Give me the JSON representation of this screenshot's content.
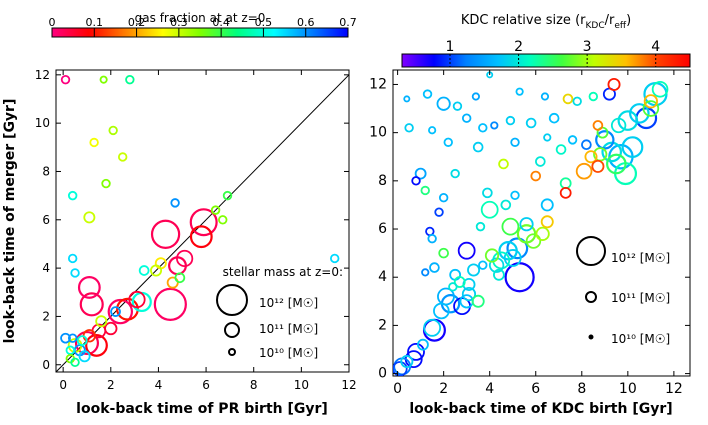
{
  "chart_data": [
    {
      "type": "scatter",
      "panel": "left",
      "xlabel": "look-back time of PR birth [Gyr]",
      "ylabel": "look-back time of merger [Gyr]",
      "xlim": [
        -0.3,
        12
      ],
      "ylim": [
        -0.3,
        12.2
      ],
      "xticks": [
        "0",
        "2",
        "4",
        "6",
        "8",
        "10",
        "12"
      ],
      "yticks": [
        "0",
        "2",
        "4",
        "6",
        "8",
        "10",
        "12"
      ],
      "one_to_one_line": true,
      "colorbar": {
        "label": "gas fraction at at z=0",
        "min": 0,
        "max": 0.7,
        "ticks": [
          "0",
          "0.1",
          "0.2",
          "0.3",
          "0.4",
          "0.5",
          "0.6",
          "0.7"
        ],
        "colormap": [
          "#ff0080",
          "#ff0000",
          "#ff8000",
          "#ffff00",
          "#80ff00",
          "#00ff80",
          "#00ffff",
          "#0080ff",
          "#0000ff"
        ]
      },
      "size_legend": {
        "title": "stellar mass at z=0:",
        "entries": [
          {
            "label": "10¹² [M☉]",
            "mass_log": 12
          },
          {
            "label": "10¹¹ [M☉]",
            "mass_log": 11
          },
          {
            "label": "10¹⁰ [M☉]",
            "mass_log": 10
          }
        ]
      },
      "points": [
        {
          "x": 0.1,
          "y": 11.8,
          "c": 0.0,
          "m": 10.2
        },
        {
          "x": 1.7,
          "y": 11.8,
          "c": 0.35,
          "m": 10.1
        },
        {
          "x": 2.8,
          "y": 11.8,
          "c": 0.45,
          "m": 10.2
        },
        {
          "x": 2.1,
          "y": 9.7,
          "c": 0.32,
          "m": 10.2
        },
        {
          "x": 1.3,
          "y": 9.2,
          "c": 0.27,
          "m": 10.2
        },
        {
          "x": 2.5,
          "y": 8.6,
          "c": 0.3,
          "m": 10.2
        },
        {
          "x": 1.8,
          "y": 7.5,
          "c": 0.35,
          "m": 10.2
        },
        {
          "x": 0.4,
          "y": 7.0,
          "c": 0.5,
          "m": 10.2
        },
        {
          "x": 1.1,
          "y": 6.1,
          "c": 0.3,
          "m": 10.4
        },
        {
          "x": 4.7,
          "y": 6.7,
          "c": 0.6,
          "m": 10.2
        },
        {
          "x": 6.9,
          "y": 7.0,
          "c": 0.4,
          "m": 10.2
        },
        {
          "x": 6.4,
          "y": 6.4,
          "c": 0.35,
          "m": 10.2
        },
        {
          "x": 6.7,
          "y": 6.0,
          "c": 0.35,
          "m": 10.2
        },
        {
          "x": 5.9,
          "y": 5.9,
          "c": 0.03,
          "m": 11.6
        },
        {
          "x": 4.3,
          "y": 5.4,
          "c": 0.03,
          "m": 11.7
        },
        {
          "x": 5.8,
          "y": 5.3,
          "c": 0.08,
          "m": 11.2
        },
        {
          "x": 0.4,
          "y": 4.4,
          "c": 0.55,
          "m": 10.2
        },
        {
          "x": 0.5,
          "y": 3.8,
          "c": 0.55,
          "m": 10.2
        },
        {
          "x": 11.4,
          "y": 4.4,
          "c": 0.55,
          "m": 10.2
        },
        {
          "x": 5.1,
          "y": 4.4,
          "c": 0.03,
          "m": 10.8
        },
        {
          "x": 4.8,
          "y": 4.1,
          "c": 0.03,
          "m": 10.9
        },
        {
          "x": 4.1,
          "y": 4.2,
          "c": 0.25,
          "m": 10.4
        },
        {
          "x": 3.9,
          "y": 3.9,
          "c": 0.3,
          "m": 10.4
        },
        {
          "x": 3.4,
          "y": 3.9,
          "c": 0.5,
          "m": 10.3
        },
        {
          "x": 4.6,
          "y": 3.4,
          "c": 0.2,
          "m": 10.4
        },
        {
          "x": 4.9,
          "y": 3.6,
          "c": 0.4,
          "m": 10.3
        },
        {
          "x": 1.1,
          "y": 3.2,
          "c": 0.02,
          "m": 11.2
        },
        {
          "x": 3.3,
          "y": 2.6,
          "c": 0.5,
          "m": 11.0
        },
        {
          "x": 1.2,
          "y": 2.5,
          "c": 0.03,
          "m": 11.3
        },
        {
          "x": 4.5,
          "y": 2.5,
          "c": 0.02,
          "m": 12.0
        },
        {
          "x": 3.1,
          "y": 2.7,
          "c": 0.05,
          "m": 10.8
        },
        {
          "x": 2.7,
          "y": 2.3,
          "c": 0.1,
          "m": 11.2
        },
        {
          "x": 2.4,
          "y": 2.2,
          "c": 0.02,
          "m": 11.4
        },
        {
          "x": 2.2,
          "y": 2.2,
          "c": 0.6,
          "m": 10.3
        },
        {
          "x": 1.6,
          "y": 1.8,
          "c": 0.3,
          "m": 10.4
        },
        {
          "x": 1.5,
          "y": 1.4,
          "c": 0.05,
          "m": 10.6
        },
        {
          "x": 1.1,
          "y": 1.2,
          "c": 0.12,
          "m": 10.5
        },
        {
          "x": 2.0,
          "y": 1.5,
          "c": 0.05,
          "m": 10.5
        },
        {
          "x": 0.1,
          "y": 1.1,
          "c": 0.6,
          "m": 10.3
        },
        {
          "x": 0.4,
          "y": 1.1,
          "c": 0.6,
          "m": 10.2
        },
        {
          "x": 0.8,
          "y": 1.0,
          "c": 0.5,
          "m": 10.3
        },
        {
          "x": 1.0,
          "y": 0.9,
          "c": 0.03,
          "m": 11.3
        },
        {
          "x": 1.4,
          "y": 0.8,
          "c": 0.08,
          "m": 11.2
        },
        {
          "x": 0.5,
          "y": 0.8,
          "c": 0.3,
          "m": 10.6
        },
        {
          "x": 0.7,
          "y": 0.6,
          "c": 0.6,
          "m": 10.4
        },
        {
          "x": 0.3,
          "y": 0.6,
          "c": 0.5,
          "m": 10.2
        },
        {
          "x": 0.9,
          "y": 0.35,
          "c": 0.55,
          "m": 10.4
        },
        {
          "x": 0.3,
          "y": 0.25,
          "c": 0.35,
          "m": 10.2
        },
        {
          "x": 0.5,
          "y": 0.1,
          "c": 0.45,
          "m": 10.2
        }
      ]
    },
    {
      "type": "scatter",
      "panel": "right",
      "xlabel": "look-back time of KDC birth [Gyr]",
      "ylabel": "",
      "xlim": [
        -0.2,
        12.7
      ],
      "ylim": [
        -0.1,
        12.6
      ],
      "xticks": [
        "0",
        "2",
        "4",
        "6",
        "8",
        "10",
        "12"
      ],
      "yticks": [
        "0",
        "2",
        "4",
        "6",
        "8",
        "10",
        "12"
      ],
      "colorbar": {
        "label": "KDC relative size (r",
        "label_sub1": "KDC",
        "label_mid": "/r",
        "label_sub2": "eff",
        "label_end": ")",
        "min": 0.3,
        "max": 4.5,
        "ticks": [
          "1",
          "2",
          "3",
          "4"
        ],
        "tick_values": [
          1,
          2,
          3,
          4
        ],
        "colormap": [
          "#8000ff",
          "#0000ff",
          "#0080ff",
          "#00c0ff",
          "#00ffc0",
          "#40ff40",
          "#c0ff00",
          "#ffc000",
          "#ff4000",
          "#ff0000"
        ]
      },
      "size_legend": {
        "entries": [
          {
            "label": "10¹² [M☉]",
            "mass_log": 12
          },
          {
            "label": "10¹¹ [M☉]",
            "mass_log": 11
          },
          {
            "label": "10¹⁰ [M☉]",
            "mass_log": 10
          }
        ]
      },
      "points": [
        {
          "x": 4.0,
          "y": 12.4,
          "c": 1.8,
          "m": 10.1
        },
        {
          "x": 0.4,
          "y": 11.4,
          "c": 1.6,
          "m": 10.1
        },
        {
          "x": 1.3,
          "y": 11.6,
          "c": 1.7,
          "m": 10.3
        },
        {
          "x": 2.0,
          "y": 11.2,
          "c": 1.6,
          "m": 10.7
        },
        {
          "x": 2.6,
          "y": 11.1,
          "c": 1.8,
          "m": 10.3
        },
        {
          "x": 3.4,
          "y": 11.5,
          "c": 1.5,
          "m": 10.2
        },
        {
          "x": 5.3,
          "y": 11.7,
          "c": 1.7,
          "m": 10.2
        },
        {
          "x": 6.4,
          "y": 11.5,
          "c": 1.6,
          "m": 10.2
        },
        {
          "x": 7.4,
          "y": 11.4,
          "c": 3.4,
          "m": 10.4
        },
        {
          "x": 7.8,
          "y": 11.3,
          "c": 1.9,
          "m": 10.3
        },
        {
          "x": 8.5,
          "y": 11.5,
          "c": 2.2,
          "m": 10.3
        },
        {
          "x": 9.2,
          "y": 11.6,
          "c": 0.9,
          "m": 10.6
        },
        {
          "x": 9.4,
          "y": 12.0,
          "c": 4.3,
          "m": 10.6
        },
        {
          "x": 11.2,
          "y": 11.6,
          "c": 1.8,
          "m": 11.5
        },
        {
          "x": 11.4,
          "y": 11.8,
          "c": 2.2,
          "m": 10.9
        },
        {
          "x": 11.0,
          "y": 11.3,
          "c": 3.6,
          "m": 10.7
        },
        {
          "x": 0.5,
          "y": 10.2,
          "c": 1.8,
          "m": 10.3
        },
        {
          "x": 1.5,
          "y": 10.1,
          "c": 1.7,
          "m": 10.2
        },
        {
          "x": 3.0,
          "y": 10.6,
          "c": 1.6,
          "m": 10.3
        },
        {
          "x": 3.7,
          "y": 10.2,
          "c": 1.7,
          "m": 10.3
        },
        {
          "x": 4.2,
          "y": 10.3,
          "c": 1.3,
          "m": 10.2
        },
        {
          "x": 4.9,
          "y": 10.5,
          "c": 1.8,
          "m": 10.3
        },
        {
          "x": 5.8,
          "y": 10.4,
          "c": 1.8,
          "m": 10.4
        },
        {
          "x": 6.8,
          "y": 10.6,
          "c": 1.7,
          "m": 10.4
        },
        {
          "x": 8.7,
          "y": 10.3,
          "c": 3.8,
          "m": 10.4
        },
        {
          "x": 8.9,
          "y": 10.0,
          "c": 2.7,
          "m": 10.5
        },
        {
          "x": 9.6,
          "y": 10.3,
          "c": 2.0,
          "m": 10.8
        },
        {
          "x": 10.0,
          "y": 10.5,
          "c": 1.9,
          "m": 11.2
        },
        {
          "x": 10.5,
          "y": 10.8,
          "c": 1.8,
          "m": 11.2
        },
        {
          "x": 10.8,
          "y": 10.6,
          "c": 1.0,
          "m": 11.3
        },
        {
          "x": 11.0,
          "y": 11.0,
          "c": 2.7,
          "m": 10.9
        },
        {
          "x": 2.2,
          "y": 9.6,
          "c": 1.7,
          "m": 10.3
        },
        {
          "x": 3.5,
          "y": 9.4,
          "c": 1.8,
          "m": 10.4
        },
        {
          "x": 5.1,
          "y": 9.6,
          "c": 1.6,
          "m": 10.3
        },
        {
          "x": 6.5,
          "y": 9.8,
          "c": 1.8,
          "m": 10.2
        },
        {
          "x": 7.1,
          "y": 9.3,
          "c": 2.1,
          "m": 10.4
        },
        {
          "x": 7.6,
          "y": 9.7,
          "c": 1.7,
          "m": 10.3
        },
        {
          "x": 8.2,
          "y": 9.5,
          "c": 1.2,
          "m": 10.4
        },
        {
          "x": 9.0,
          "y": 9.7,
          "c": 1.3,
          "m": 11.1
        },
        {
          "x": 9.3,
          "y": 9.2,
          "c": 1.9,
          "m": 11.2
        },
        {
          "x": 10.2,
          "y": 9.4,
          "c": 1.8,
          "m": 11.3
        },
        {
          "x": 9.7,
          "y": 9.0,
          "c": 1.6,
          "m": 11.6
        },
        {
          "x": 8.8,
          "y": 9.1,
          "c": 2.8,
          "m": 10.7
        },
        {
          "x": 8.4,
          "y": 9.0,
          "c": 3.6,
          "m": 10.6
        },
        {
          "x": 4.6,
          "y": 8.7,
          "c": 3.1,
          "m": 10.4
        },
        {
          "x": 1.0,
          "y": 8.3,
          "c": 1.5,
          "m": 10.5
        },
        {
          "x": 0.8,
          "y": 8.0,
          "c": 0.8,
          "m": 10.3
        },
        {
          "x": 2.5,
          "y": 8.3,
          "c": 1.9,
          "m": 10.3
        },
        {
          "x": 6.2,
          "y": 8.8,
          "c": 2.0,
          "m": 10.4
        },
        {
          "x": 6.0,
          "y": 8.2,
          "c": 3.8,
          "m": 10.4
        },
        {
          "x": 7.3,
          "y": 7.9,
          "c": 2.3,
          "m": 10.5
        },
        {
          "x": 8.1,
          "y": 8.4,
          "c": 3.7,
          "m": 10.9
        },
        {
          "x": 8.7,
          "y": 8.6,
          "c": 4.0,
          "m": 10.6
        },
        {
          "x": 9.5,
          "y": 8.7,
          "c": 2.5,
          "m": 11.2
        },
        {
          "x": 9.9,
          "y": 8.3,
          "c": 2.2,
          "m": 11.4
        },
        {
          "x": 7.3,
          "y": 7.5,
          "c": 4.3,
          "m": 10.5
        },
        {
          "x": 1.2,
          "y": 7.6,
          "c": 2.4,
          "m": 10.3
        },
        {
          "x": 3.9,
          "y": 7.5,
          "c": 1.9,
          "m": 10.4
        },
        {
          "x": 5.1,
          "y": 7.4,
          "c": 1.7,
          "m": 10.3
        },
        {
          "x": 6.5,
          "y": 7.0,
          "c": 1.7,
          "m": 10.6
        },
        {
          "x": 2.0,
          "y": 7.3,
          "c": 1.6,
          "m": 10.3
        },
        {
          "x": 4.0,
          "y": 6.8,
          "c": 2.2,
          "m": 11.0
        },
        {
          "x": 4.7,
          "y": 7.0,
          "c": 2.0,
          "m": 10.4
        },
        {
          "x": 1.8,
          "y": 6.7,
          "c": 1.0,
          "m": 10.3
        },
        {
          "x": 6.5,
          "y": 6.3,
          "c": 3.5,
          "m": 10.6
        },
        {
          "x": 5.6,
          "y": 6.2,
          "c": 1.8,
          "m": 10.7
        },
        {
          "x": 4.9,
          "y": 6.1,
          "c": 2.6,
          "m": 11.0
        },
        {
          "x": 5.6,
          "y": 5.8,
          "c": 2.8,
          "m": 11.1
        },
        {
          "x": 5.9,
          "y": 5.5,
          "c": 2.8,
          "m": 10.8
        },
        {
          "x": 6.3,
          "y": 5.8,
          "c": 3.0,
          "m": 10.7
        },
        {
          "x": 3.6,
          "y": 6.1,
          "c": 2.0,
          "m": 10.3
        },
        {
          "x": 1.4,
          "y": 5.9,
          "c": 0.9,
          "m": 10.3
        },
        {
          "x": 1.5,
          "y": 5.6,
          "c": 1.6,
          "m": 10.3
        },
        {
          "x": 2.0,
          "y": 5.0,
          "c": 2.6,
          "m": 10.4
        },
        {
          "x": 3.0,
          "y": 5.1,
          "c": 0.7,
          "m": 11.0
        },
        {
          "x": 4.1,
          "y": 4.9,
          "c": 2.8,
          "m": 10.7
        },
        {
          "x": 4.8,
          "y": 5.1,
          "c": 1.8,
          "m": 11.1
        },
        {
          "x": 5.2,
          "y": 5.2,
          "c": 1.3,
          "m": 11.3
        },
        {
          "x": 5.0,
          "y": 4.8,
          "c": 1.8,
          "m": 11.0
        },
        {
          "x": 4.5,
          "y": 4.7,
          "c": 2.1,
          "m": 11.0
        },
        {
          "x": 4.3,
          "y": 4.5,
          "c": 1.9,
          "m": 10.8
        },
        {
          "x": 3.7,
          "y": 4.5,
          "c": 1.7,
          "m": 10.3
        },
        {
          "x": 4.4,
          "y": 4.1,
          "c": 2.0,
          "m": 10.5
        },
        {
          "x": 5.3,
          "y": 4.0,
          "c": 0.7,
          "m": 12.0
        },
        {
          "x": 1.6,
          "y": 4.4,
          "c": 1.6,
          "m": 10.4
        },
        {
          "x": 2.5,
          "y": 4.1,
          "c": 1.7,
          "m": 10.5
        },
        {
          "x": 3.3,
          "y": 4.3,
          "c": 1.8,
          "m": 10.6
        },
        {
          "x": 1.2,
          "y": 4.2,
          "c": 1.3,
          "m": 10.2
        },
        {
          "x": 2.7,
          "y": 3.8,
          "c": 2.2,
          "m": 10.5
        },
        {
          "x": 3.1,
          "y": 3.7,
          "c": 1.8,
          "m": 10.6
        },
        {
          "x": 2.4,
          "y": 3.6,
          "c": 2.0,
          "m": 10.3
        },
        {
          "x": 2.1,
          "y": 3.2,
          "c": 1.6,
          "m": 11.0
        },
        {
          "x": 3.1,
          "y": 3.3,
          "c": 1.8,
          "m": 10.7
        },
        {
          "x": 3.5,
          "y": 3.0,
          "c": 2.4,
          "m": 10.6
        },
        {
          "x": 3.0,
          "y": 3.0,
          "c": 1.7,
          "m": 10.7
        },
        {
          "x": 2.3,
          "y": 2.9,
          "c": 1.4,
          "m": 11.1
        },
        {
          "x": 2.8,
          "y": 2.8,
          "c": 0.8,
          "m": 11.0
        },
        {
          "x": 1.9,
          "y": 2.6,
          "c": 1.7,
          "m": 10.9
        },
        {
          "x": 1.5,
          "y": 1.9,
          "c": 1.8,
          "m": 11.0
        },
        {
          "x": 1.6,
          "y": 1.8,
          "c": 0.7,
          "m": 11.4
        },
        {
          "x": 1.1,
          "y": 1.2,
          "c": 1.7,
          "m": 10.5
        },
        {
          "x": 0.8,
          "y": 0.9,
          "c": 0.8,
          "m": 11.0
        },
        {
          "x": 0.7,
          "y": 0.6,
          "c": 0.8,
          "m": 11.0
        },
        {
          "x": 0.4,
          "y": 0.5,
          "c": 1.8,
          "m": 10.6
        },
        {
          "x": 0.2,
          "y": 0.3,
          "c": 1.2,
          "m": 11.0
        },
        {
          "x": 0.1,
          "y": 0.2,
          "c": 1.0,
          "m": 10.8
        }
      ]
    }
  ]
}
